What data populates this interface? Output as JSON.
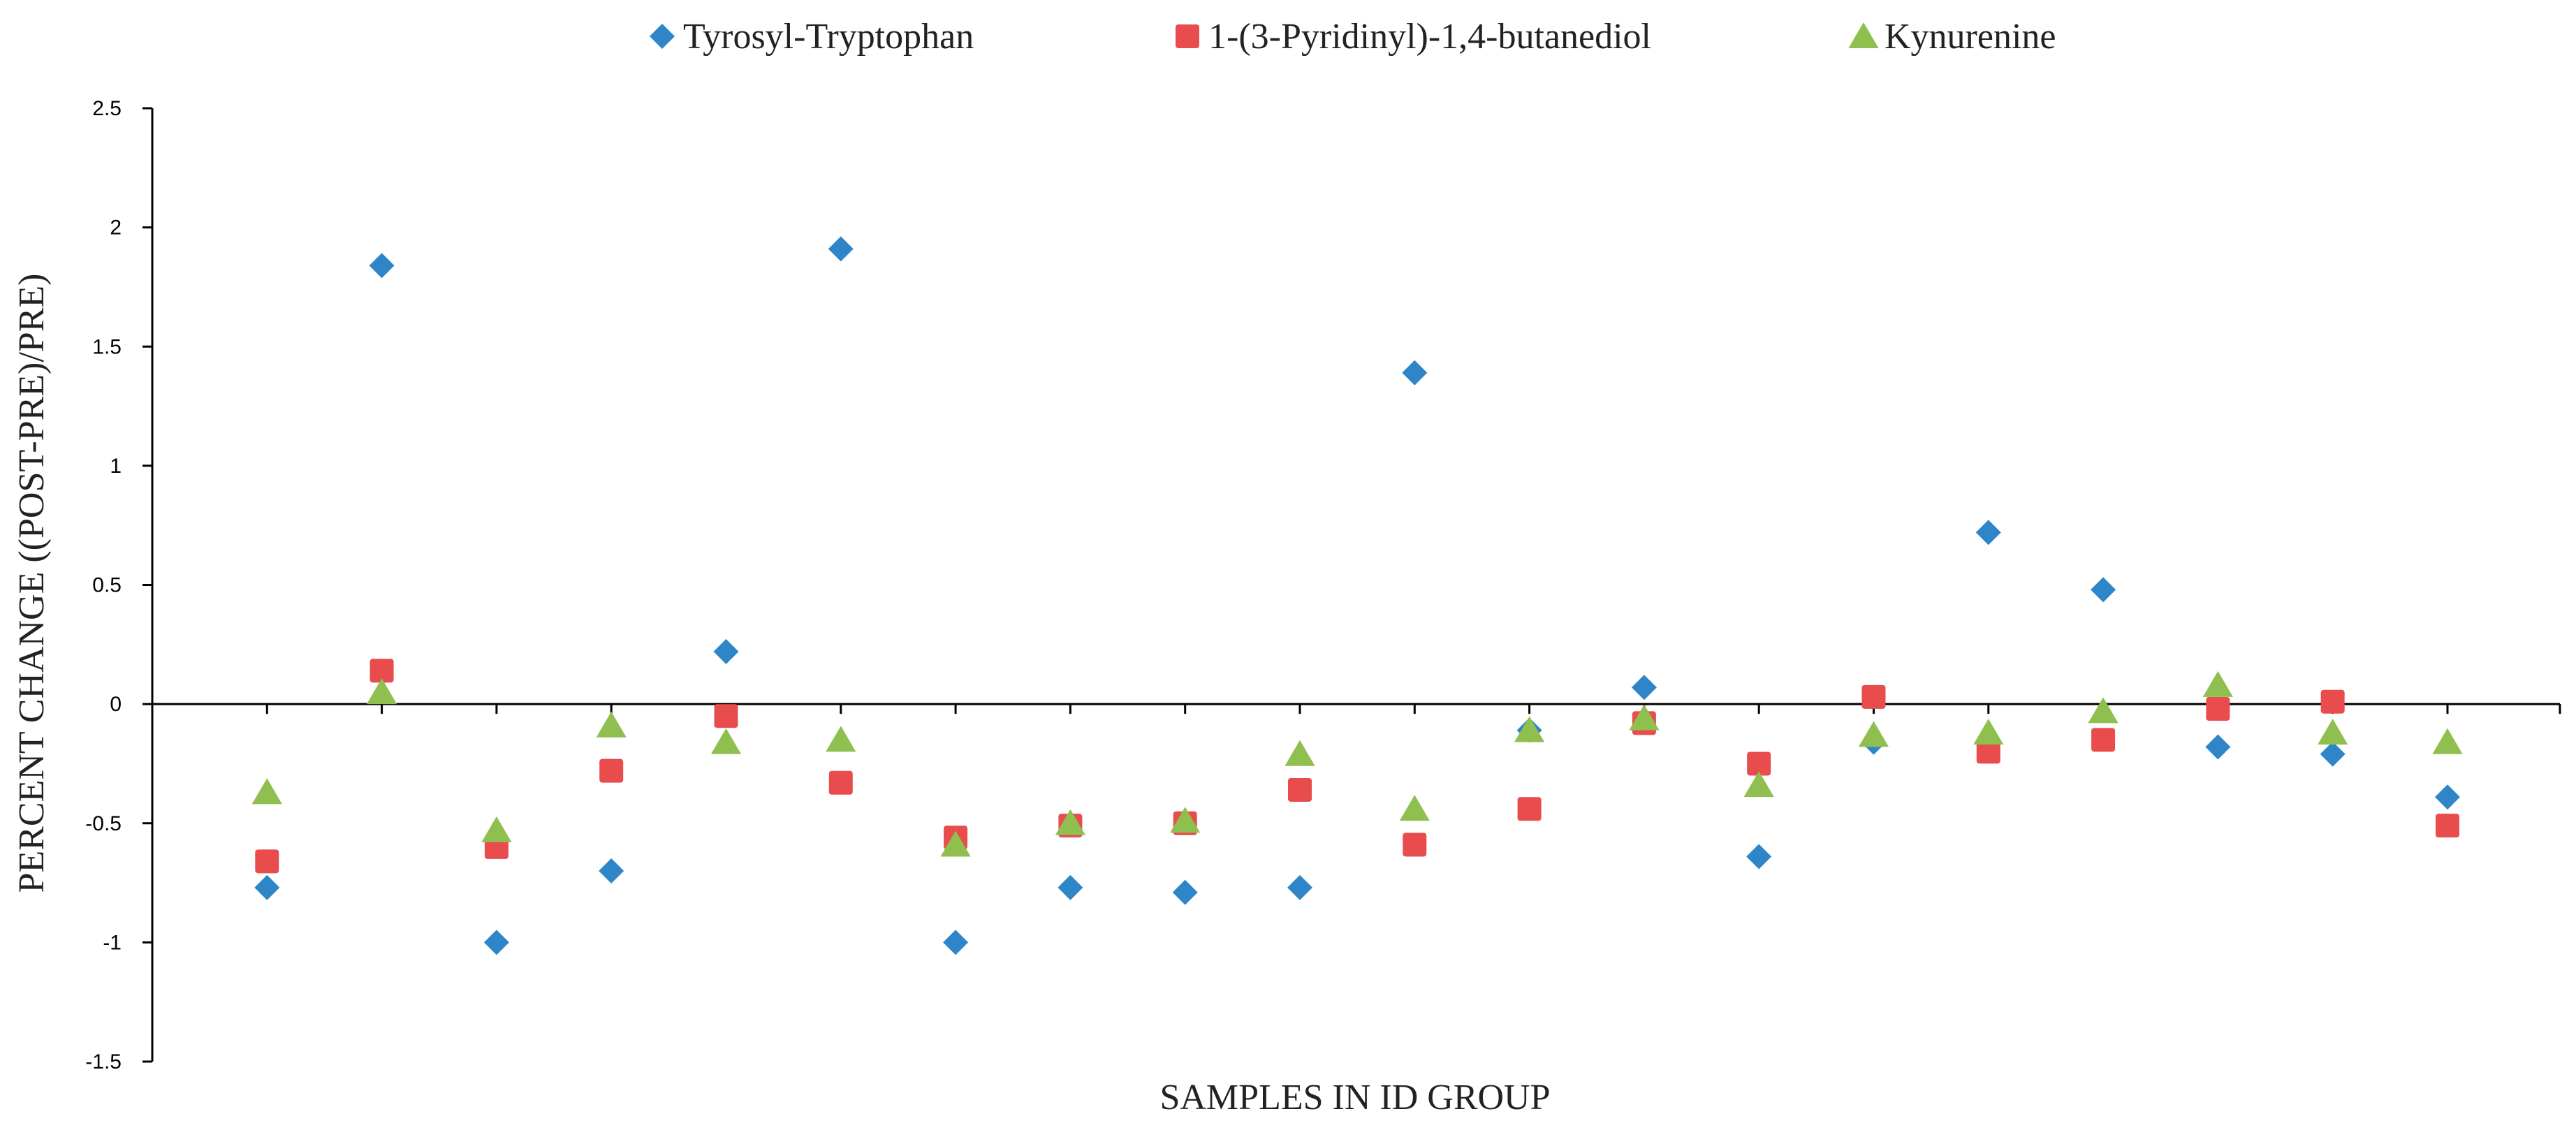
{
  "chart_data": {
    "type": "scatter",
    "title": "",
    "xlabel": "SAMPLES IN ID GROUP",
    "ylabel": "PERCENT CHANGE ((POST-PRE)/PRE)",
    "ylim": [
      -1.5,
      2.5
    ],
    "yticks": [
      -1.5,
      -1,
      -0.5,
      0,
      0.5,
      1,
      1.5,
      2,
      2.5
    ],
    "ytick_labels": [
      "-1.5",
      "-1",
      "-0.5",
      "0",
      "0.5",
      "1",
      "1.5",
      "2",
      "2.5"
    ],
    "x": [
      1,
      2,
      3,
      4,
      5,
      6,
      7,
      8,
      9,
      10,
      11,
      12,
      13,
      14,
      15,
      16,
      17,
      18,
      19,
      20
    ],
    "xlim": [
      0,
      20.98
    ],
    "grid": false,
    "legend_position": "top",
    "series": [
      {
        "name": "Tyrosyl-Tryptophan",
        "marker": "diamond",
        "color": "#2E86C8",
        "values": [
          -0.77,
          1.84,
          -1.0,
          -0.7,
          0.22,
          1.91,
          -1.0,
          -0.77,
          -0.79,
          -0.77,
          1.39,
          -0.11,
          0.07,
          -0.64,
          -0.16,
          0.72,
          0.48,
          -0.18,
          -0.21,
          -0.39
        ]
      },
      {
        "name": "1-(3-Pyridinyl)-1,4-butanediol",
        "marker": "square",
        "color": "#E84C4C",
        "values": [
          -0.66,
          0.14,
          -0.6,
          -0.28,
          -0.05,
          -0.33,
          -0.56,
          -0.51,
          -0.5,
          -0.36,
          -0.59,
          -0.44,
          -0.08,
          -0.25,
          0.03,
          -0.2,
          -0.15,
          -0.02,
          0.01,
          -0.51
        ]
      },
      {
        "name": "Kynurenine",
        "marker": "triangle",
        "color": "#8FBF4E",
        "values": [
          -0.37,
          0.05,
          -0.53,
          -0.09,
          -0.16,
          -0.15,
          -0.59,
          -0.5,
          -0.49,
          -0.21,
          -0.44,
          -0.11,
          -0.06,
          -0.34,
          -0.13,
          -0.12,
          -0.03,
          0.08,
          -0.12,
          -0.16
        ]
      }
    ]
  }
}
